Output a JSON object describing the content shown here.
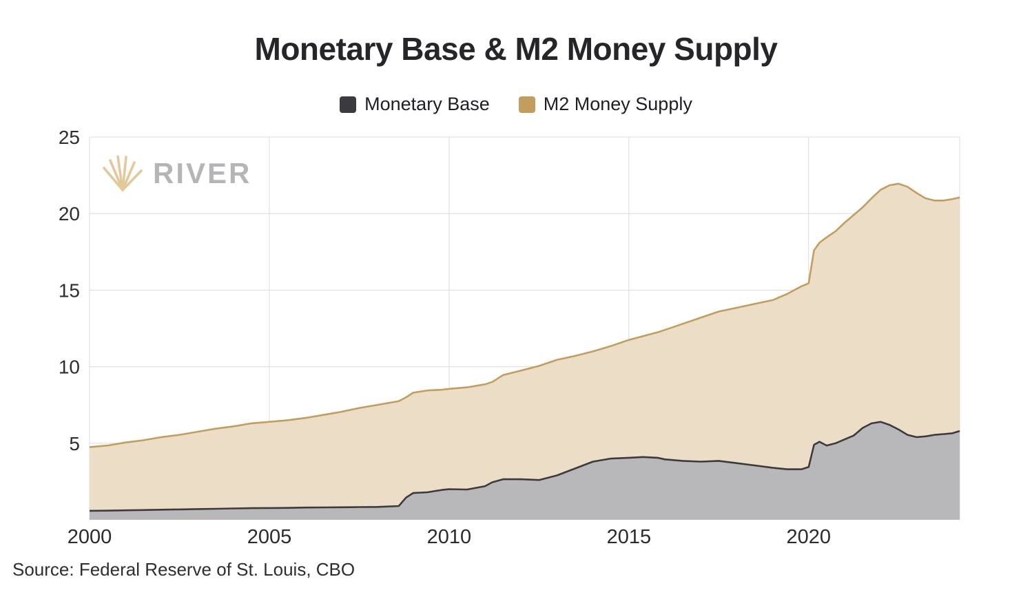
{
  "title": "Monetary Base & M2 Money Supply",
  "legend": {
    "items": [
      {
        "label": "Monetary Base"
      },
      {
        "label": "M2 Money Supply"
      }
    ]
  },
  "watermark": {
    "brand": "RIVER"
  },
  "source": "Source: Federal Reserve of St. Louis, CBO",
  "colors": {
    "monetary_base_line": "#3a3a3f",
    "monetary_base_fill": "#b8b8bb",
    "m2_line": "#c29d5d",
    "m2_fill": "#ecdec6",
    "grid": "#dcdcdc",
    "watermark_icon": "#e2c694"
  },
  "chart_data": {
    "type": "area",
    "title": "Monetary Base & M2 Money Supply",
    "xlabel": "",
    "ylabel": "",
    "xlim": [
      2000,
      2024.2
    ],
    "ylim": [
      0,
      25
    ],
    "x_ticks": [
      2000,
      2005,
      2010,
      2015,
      2020
    ],
    "y_ticks": [
      5,
      10,
      15,
      20,
      25
    ],
    "grid": true,
    "legend_position": "top",
    "x": [
      2000,
      2000.5,
      2001,
      2001.5,
      2002,
      2002.5,
      2003,
      2003.5,
      2004,
      2004.5,
      2005,
      2005.5,
      2006,
      2006.5,
      2007,
      2007.5,
      2008,
      2008.6,
      2008.8,
      2009,
      2009.4,
      2009.8,
      2010,
      2010.5,
      2011,
      2011.2,
      2011.5,
      2012,
      2012.5,
      2013,
      2013.5,
      2014,
      2014.5,
      2015,
      2015.4,
      2015.8,
      2016,
      2016.5,
      2017,
      2017.5,
      2018,
      2018.5,
      2019,
      2019.4,
      2019.8,
      2020,
      2020.15,
      2020.3,
      2020.5,
      2020.75,
      2021,
      2021.25,
      2021.5,
      2021.75,
      2022,
      2022.25,
      2022.5,
      2022.75,
      2023,
      2023.25,
      2023.5,
      2023.75,
      2024,
      2024.2
    ],
    "series": [
      {
        "name": "Monetary Base",
        "line_color": "#3a3a3f",
        "fill_color": "#b8b8bb",
        "values": [
          0.59,
          0.6,
          0.62,
          0.64,
          0.66,
          0.68,
          0.7,
          0.72,
          0.74,
          0.76,
          0.77,
          0.78,
          0.8,
          0.81,
          0.82,
          0.83,
          0.84,
          0.9,
          1.45,
          1.75,
          1.8,
          1.95,
          2.0,
          1.98,
          2.2,
          2.45,
          2.65,
          2.65,
          2.6,
          2.9,
          3.35,
          3.8,
          4.0,
          4.05,
          4.1,
          4.05,
          3.95,
          3.85,
          3.8,
          3.85,
          3.7,
          3.55,
          3.4,
          3.3,
          3.3,
          3.45,
          4.9,
          5.1,
          4.85,
          5.0,
          5.25,
          5.5,
          6.0,
          6.3,
          6.4,
          6.2,
          5.9,
          5.55,
          5.4,
          5.45,
          5.55,
          5.6,
          5.65,
          5.8
        ]
      },
      {
        "name": "M2 Money Supply",
        "line_color": "#c29d5d",
        "fill_color": "#ecdec6",
        "values": [
          4.75,
          4.85,
          5.05,
          5.2,
          5.4,
          5.55,
          5.75,
          5.95,
          6.1,
          6.3,
          6.4,
          6.5,
          6.65,
          6.85,
          7.05,
          7.3,
          7.5,
          7.75,
          8.0,
          8.3,
          8.45,
          8.5,
          8.55,
          8.65,
          8.85,
          9.0,
          9.45,
          9.75,
          10.05,
          10.45,
          10.7,
          11.0,
          11.35,
          11.75,
          12.0,
          12.25,
          12.4,
          12.8,
          13.2,
          13.6,
          13.85,
          14.1,
          14.35,
          14.75,
          15.25,
          15.45,
          17.6,
          18.1,
          18.45,
          18.85,
          19.4,
          19.9,
          20.4,
          21.0,
          21.55,
          21.85,
          21.95,
          21.75,
          21.35,
          21.0,
          20.85,
          20.85,
          20.95,
          21.05
        ]
      }
    ]
  }
}
